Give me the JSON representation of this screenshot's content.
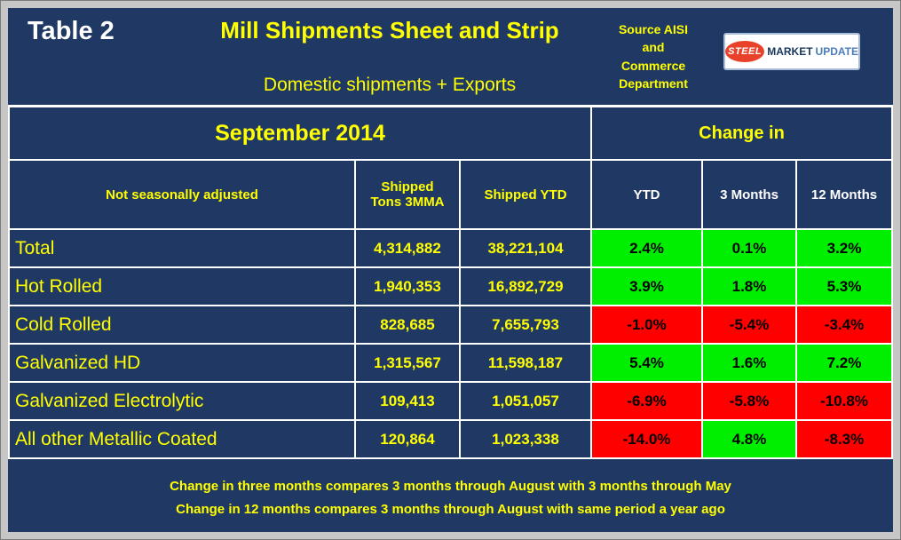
{
  "header": {
    "table_label": "Table 2",
    "title": "Mill Shipments Sheet and Strip",
    "subtitle": "Domestic shipments + Exports",
    "source_lines": [
      "Source AISI",
      "and",
      "Commerce",
      "Department"
    ],
    "logo": {
      "steel": "STEEL",
      "market": "MARKET",
      "update": "UPDATE"
    }
  },
  "table": {
    "period": "September 2014",
    "change_in": "Change in",
    "headers": {
      "label": "Not seasonally adjusted",
      "tons": "Shipped Tons 3MMA",
      "ytd": "Shipped YTD",
      "chg_ytd": "YTD",
      "chg_3mo": "3 Months",
      "chg_12mo": "12 Months"
    },
    "rows": [
      {
        "label": "Total",
        "tons": "4,314,882",
        "ytd": "38,221,104",
        "chg_ytd": "2.4%",
        "chg_3mo": "0.1%",
        "chg_12mo": "3.2%"
      },
      {
        "label": "Hot Rolled",
        "tons": "1,940,353",
        "ytd": "16,892,729",
        "chg_ytd": "3.9%",
        "chg_3mo": "1.8%",
        "chg_12mo": "5.3%"
      },
      {
        "label": "Cold Rolled",
        "tons": "828,685",
        "ytd": "7,655,793",
        "chg_ytd": "-1.0%",
        "chg_3mo": "-5.4%",
        "chg_12mo": "-3.4%"
      },
      {
        "label": "Galvanized HD",
        "tons": "1,315,567",
        "ytd": "11,598,187",
        "chg_ytd": "5.4%",
        "chg_3mo": "1.6%",
        "chg_12mo": "7.2%"
      },
      {
        "label": "Galvanized Electrolytic",
        "tons": "109,413",
        "ytd": "1,051,057",
        "chg_ytd": "-6.9%",
        "chg_3mo": "-5.8%",
        "chg_12mo": "-10.8%"
      },
      {
        "label": "All other Metallic Coated",
        "tons": "120,864",
        "ytd": "1,023,338",
        "chg_ytd": "-14.0%",
        "chg_3mo": "4.8%",
        "chg_12mo": "-8.3%"
      }
    ]
  },
  "footer": {
    "line1": "Change in three months compares 3 months through August with 3 months through May",
    "line2": "Change in 12 months compares 3 months through August with same period a year ago"
  },
  "colors": {
    "background": "#203864",
    "accent_yellow": "#ffff00",
    "positive": "#00ee00",
    "negative": "#ff0000",
    "grid_line": "#ffffff"
  },
  "chart_data": {
    "type": "table",
    "title": "Mill Shipments Sheet and Strip",
    "subtitle": "Domestic shipments + Exports",
    "period": "September 2014",
    "source": "Source AISI and Commerce Department",
    "columns": [
      "Not seasonally adjusted",
      "Shipped Tons 3MMA",
      "Shipped YTD",
      "Change in YTD",
      "Change in 3 Months",
      "Change in 12 Months"
    ],
    "rows": [
      [
        "Total",
        4314882,
        38221104,
        2.4,
        0.1,
        3.2
      ],
      [
        "Hot Rolled",
        1940353,
        16892729,
        3.9,
        1.8,
        5.3
      ],
      [
        "Cold Rolled",
        828685,
        7655793,
        -1.0,
        -5.4,
        -3.4
      ],
      [
        "Galvanized HD",
        1315567,
        11598187,
        5.4,
        1.6,
        7.2
      ],
      [
        "Galvanized Electrolytic",
        109413,
        1051057,
        -6.9,
        -5.8,
        -10.8
      ],
      [
        "All other Metallic Coated",
        120864,
        1023338,
        -14.0,
        4.8,
        -8.3
      ]
    ],
    "cell_color_rule": "positive change = green background, negative change = red background"
  }
}
